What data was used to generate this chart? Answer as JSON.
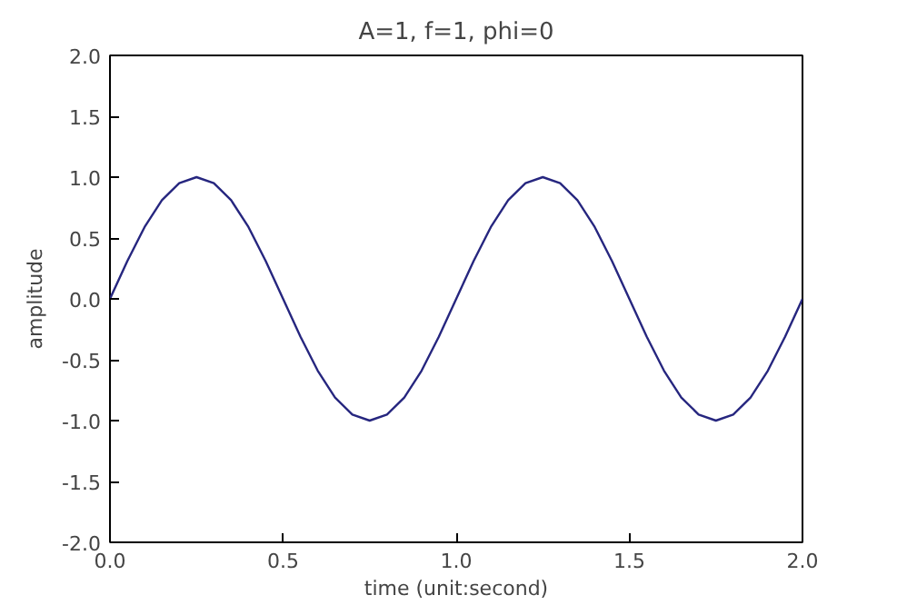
{
  "chart_data": {
    "type": "line",
    "title": "A=1, f=1, phi=0",
    "xlabel": "time (unit:second)",
    "ylabel": "amplitude",
    "x": [
      0,
      0.05,
      0.1,
      0.15,
      0.2,
      0.25,
      0.3,
      0.35,
      0.4,
      0.45,
      0.5,
      0.55,
      0.6,
      0.65,
      0.7,
      0.75,
      0.8,
      0.85,
      0.9,
      0.95,
      1.0,
      1.05,
      1.1,
      1.15,
      1.2,
      1.25,
      1.3,
      1.35,
      1.4,
      1.45,
      1.5,
      1.55,
      1.6,
      1.65,
      1.7,
      1.75,
      1.8,
      1.85,
      1.9,
      1.95,
      2.0
    ],
    "series": [
      {
        "color": "#26267f",
        "values": [
          0,
          0.31,
          0.59,
          0.81,
          0.95,
          1.0,
          0.95,
          0.81,
          0.59,
          0.31,
          0,
          -0.31,
          -0.59,
          -0.81,
          -0.95,
          -1.0,
          -0.95,
          -0.81,
          -0.59,
          -0.31,
          0,
          0.31,
          0.59,
          0.81,
          0.95,
          1.0,
          0.95,
          0.81,
          0.59,
          0.31,
          0,
          -0.31,
          -0.59,
          -0.81,
          -0.95,
          -1.0,
          -0.95,
          -0.81,
          -0.59,
          -0.31,
          0
        ]
      }
    ],
    "xlim": [
      0,
      2
    ],
    "ylim": [
      -2,
      2
    ],
    "xticks": [
      {
        "value": 0,
        "label": "0.0"
      },
      {
        "value": 0.5,
        "label": "0.5"
      },
      {
        "value": 1,
        "label": "1.0"
      },
      {
        "value": 1.5,
        "label": "1.5"
      },
      {
        "value": 2,
        "label": "2.0"
      }
    ],
    "yticks": [
      {
        "value": -2,
        "label": "-2.0"
      },
      {
        "value": -1.5,
        "label": "-1.5"
      },
      {
        "value": -1,
        "label": "-1.0"
      },
      {
        "value": -0.5,
        "label": "-0.5"
      },
      {
        "value": 0,
        "label": "0.0"
      },
      {
        "value": 0.5,
        "label": "0.5"
      },
      {
        "value": 1,
        "label": "1.0"
      },
      {
        "value": 1.5,
        "label": "1.5"
      },
      {
        "value": 2,
        "label": "2.0"
      }
    ],
    "grid": false
  }
}
